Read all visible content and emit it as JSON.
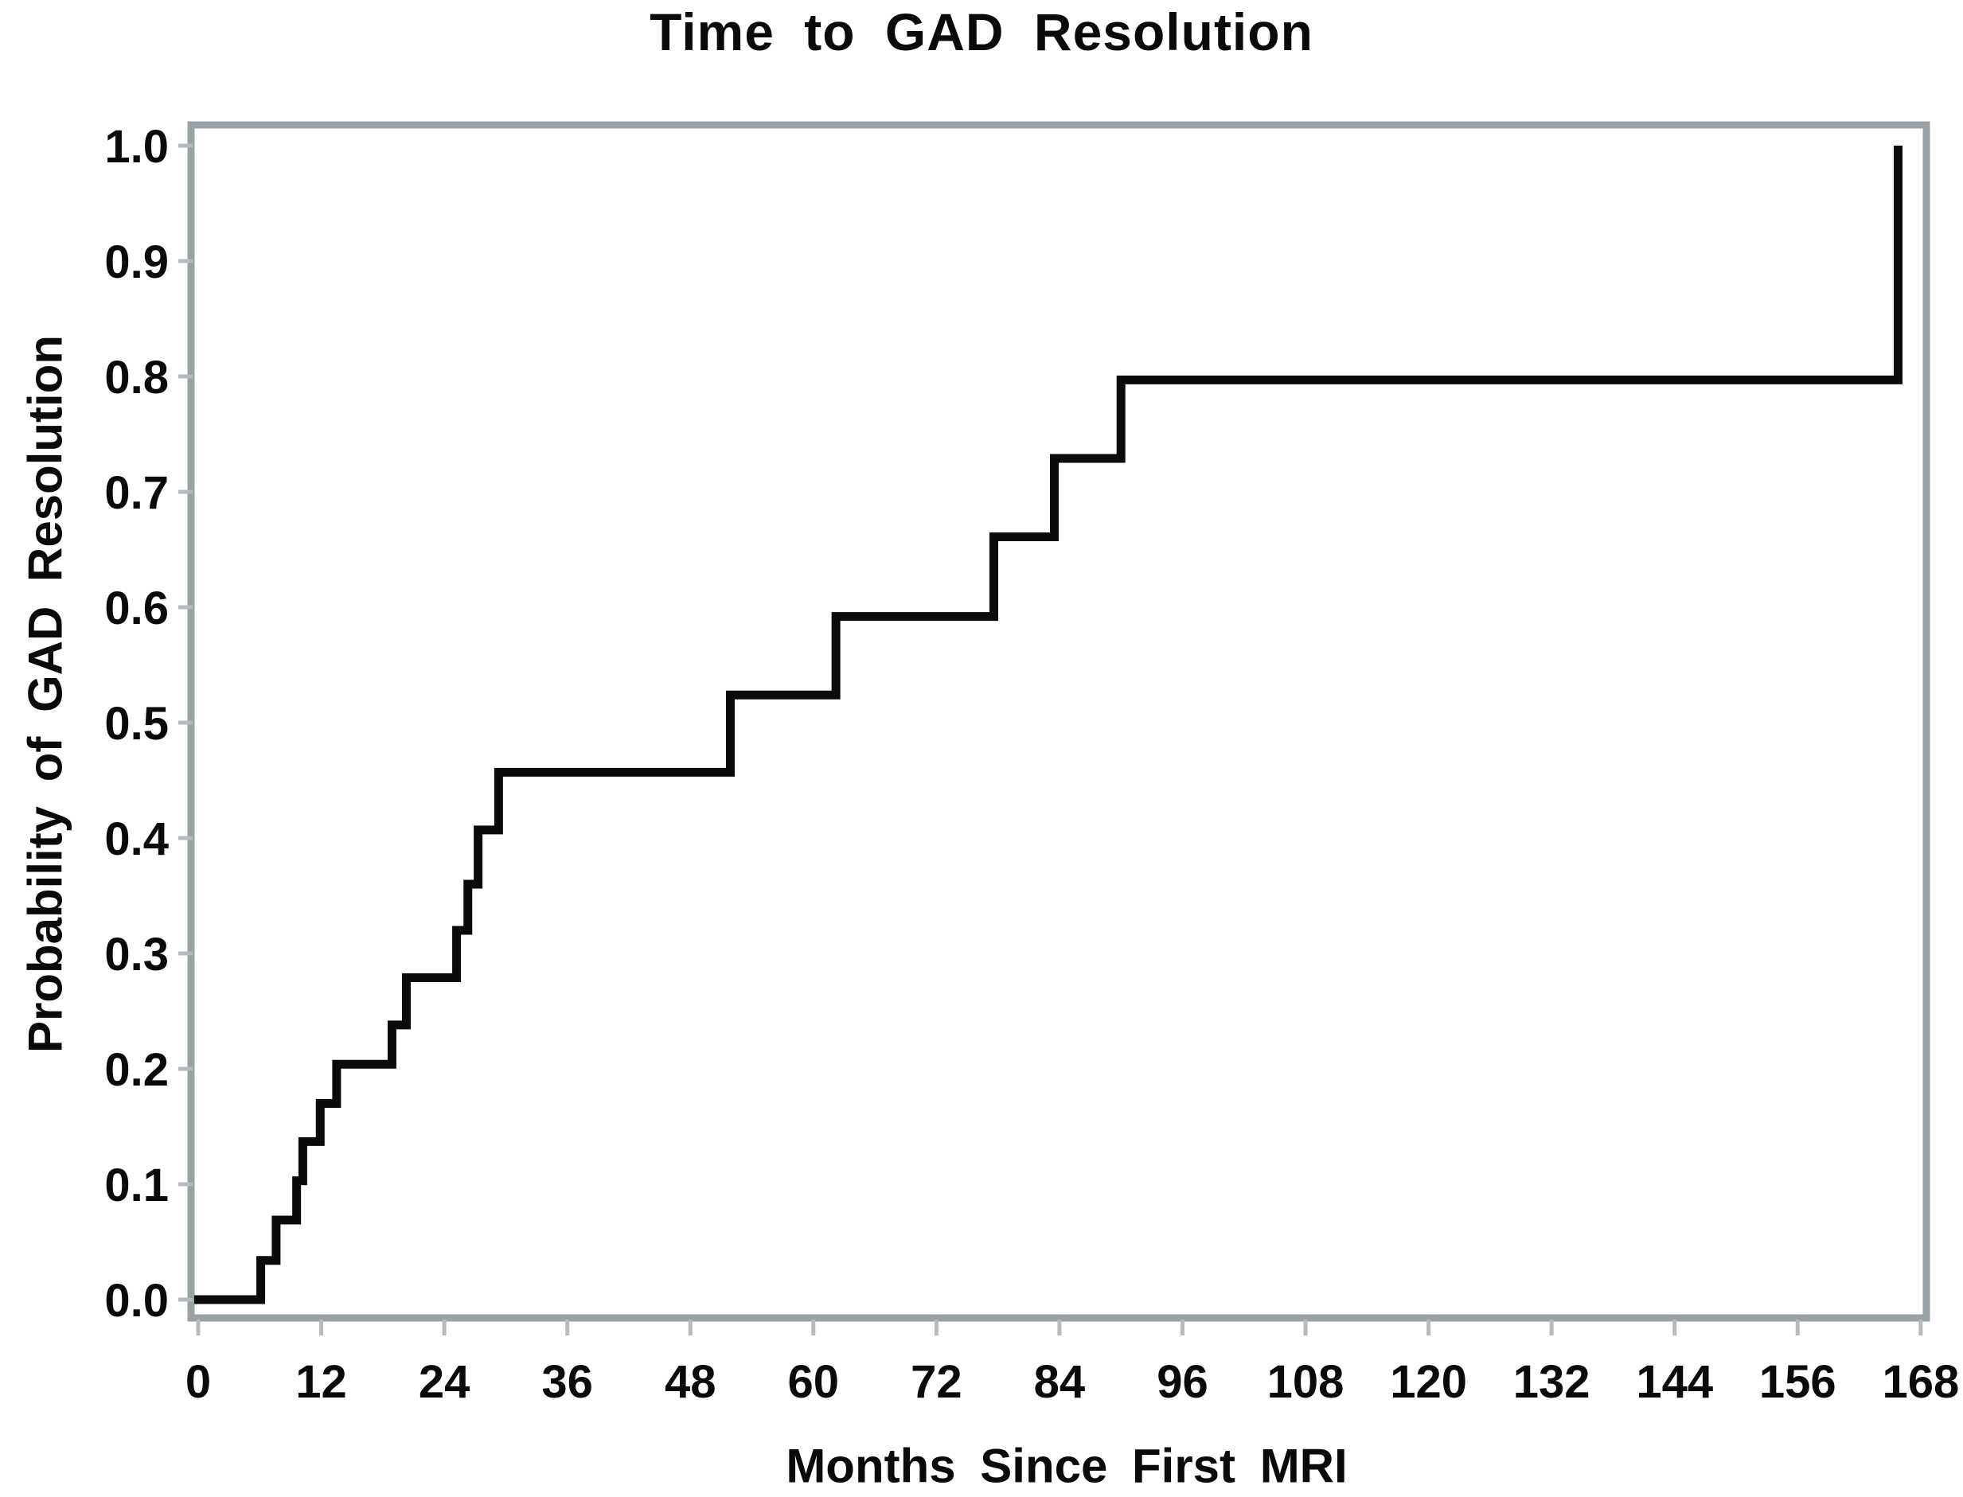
{
  "figure": {
    "title": "Time to GAD Resolution",
    "background_color": "#ffffff",
    "frame_color": "#9aa1a5",
    "tick_color": "#b4babd",
    "text_color": "#0a0a0a",
    "curve_color": "#0b0b0b"
  },
  "chart_data": {
    "type": "line",
    "subtype": "kaplan-meier-step",
    "title": "Time to GAD Resolution",
    "xlabel": "Months Since First MRI",
    "ylabel": "Probability of GAD Resolution",
    "xlim": [
      0,
      168
    ],
    "ylim": [
      0.0,
      1.0
    ],
    "x_ticks": [
      0,
      12,
      24,
      36,
      48,
      60,
      72,
      84,
      96,
      108,
      120,
      132,
      144,
      156,
      168
    ],
    "y_ticks": [
      "0.0",
      "0.1",
      "0.2",
      "0.3",
      "0.4",
      "0.5",
      "0.6",
      "0.7",
      "0.8",
      "0.9",
      "1.0"
    ],
    "grid": false,
    "legend": false,
    "series": [
      {
        "name": "Probability of GAD Resolution",
        "start": {
          "x": 0,
          "y": 0.0
        },
        "steps": [
          {
            "x": 6.1,
            "y": 0.034
          },
          {
            "x": 7.6,
            "y": 0.069
          },
          {
            "x": 9.6,
            "y": 0.103
          },
          {
            "x": 10.2,
            "y": 0.137
          },
          {
            "x": 11.9,
            "y": 0.17
          },
          {
            "x": 13.5,
            "y": 0.204
          },
          {
            "x": 18.9,
            "y": 0.238
          },
          {
            "x": 20.3,
            "y": 0.279
          },
          {
            "x": 25.2,
            "y": 0.32
          },
          {
            "x": 26.3,
            "y": 0.36
          },
          {
            "x": 27.3,
            "y": 0.407
          },
          {
            "x": 29.3,
            "y": 0.457
          },
          {
            "x": 51.9,
            "y": 0.524
          },
          {
            "x": 62.2,
            "y": 0.592
          },
          {
            "x": 77.6,
            "y": 0.661
          },
          {
            "x": 83.5,
            "y": 0.729
          },
          {
            "x": 90.0,
            "y": 0.797
          },
          {
            "x": 165.8,
            "y": 1.0
          }
        ]
      }
    ]
  }
}
